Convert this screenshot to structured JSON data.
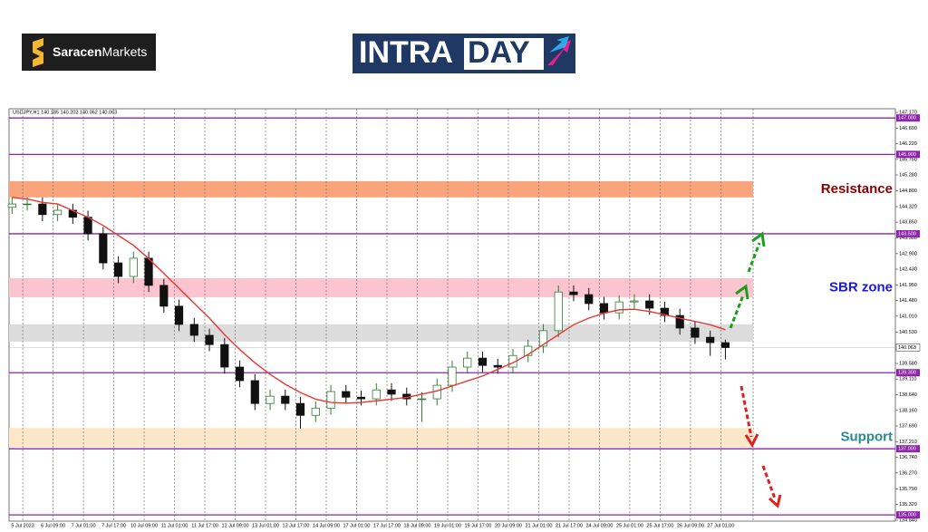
{
  "header": {
    "brand_bold": "Saracen",
    "brand_rest": "Markets",
    "banner_left": "INTRA",
    "banner_right": "DAY"
  },
  "chart_data": {
    "type": "candlestick",
    "symbol_info": "USDJPY,H1  140.185 140.202 140.062 140.063",
    "up_color": "#2e7d32",
    "down_color": "#111111",
    "open": [
      144.3,
      144.4,
      144.4,
      144.08,
      144.21,
      144.0,
      143.5,
      142.62,
      142.21,
      142.76,
      141.94,
      141.31,
      140.76,
      140.43,
      140.15,
      139.47,
      139.06,
      138.37,
      138.59,
      138.37,
      138.01,
      138.23,
      138.73,
      138.56,
      138.51,
      138.78,
      138.65,
      138.51,
      138.51,
      138.92,
      139.47,
      139.74,
      139.52,
      139.47,
      139.82,
      140.1,
      140.57,
      141.74,
      141.66,
      141.39,
      141.11,
      141.44,
      141.47,
      141.25,
      141.03,
      140.65,
      140.37,
      140.21
    ],
    "high": [
      144.6,
      144.6,
      144.6,
      144.41,
      144.41,
      144.2,
      143.7,
      142.82,
      142.96,
      142.96,
      142.14,
      141.51,
      140.96,
      140.63,
      140.35,
      139.67,
      139.26,
      138.79,
      138.79,
      138.57,
      138.43,
      138.93,
      138.93,
      138.76,
      138.98,
      138.98,
      138.85,
      138.71,
      139.12,
      139.67,
      139.94,
      139.94,
      139.72,
      140.02,
      140.3,
      140.77,
      141.94,
      141.94,
      141.86,
      141.59,
      141.64,
      141.67,
      141.67,
      141.45,
      141.23,
      140.85,
      140.57,
      140.3
    ],
    "low": [
      144.1,
      144.2,
      143.88,
      143.88,
      143.8,
      143.3,
      142.42,
      142.01,
      142.01,
      141.74,
      141.11,
      140.56,
      140.23,
      139.95,
      139.27,
      138.86,
      138.17,
      138.17,
      138.17,
      137.61,
      137.81,
      138.03,
      138.36,
      138.31,
      138.31,
      138.45,
      138.31,
      137.81,
      138.31,
      138.72,
      139.27,
      139.32,
      139.27,
      139.27,
      139.62,
      139.9,
      140.37,
      141.46,
      141.19,
      140.91,
      140.91,
      141.24,
      141.05,
      140.83,
      140.45,
      140.17,
      139.81,
      139.7
    ],
    "close": [
      144.4,
      144.4,
      144.08,
      144.21,
      144.0,
      143.5,
      142.62,
      142.21,
      142.76,
      141.94,
      141.31,
      140.76,
      140.43,
      140.15,
      139.47,
      139.06,
      138.37,
      138.59,
      138.37,
      138.01,
      138.23,
      138.73,
      138.56,
      138.51,
      138.78,
      138.65,
      138.51,
      138.51,
      138.92,
      139.47,
      139.74,
      139.52,
      139.47,
      139.82,
      140.1,
      140.57,
      141.74,
      141.66,
      141.39,
      141.11,
      141.44,
      141.47,
      141.25,
      141.03,
      140.65,
      140.37,
      140.21,
      140.06
    ],
    "moving_average": {
      "color": "#e53935",
      "values": [
        144.6,
        144.55,
        144.45,
        144.4,
        144.2,
        144.0,
        143.75,
        143.45,
        143.15,
        142.75,
        142.3,
        141.85,
        141.4,
        140.95,
        140.45,
        140.0,
        139.6,
        139.25,
        138.95,
        138.7,
        138.5,
        138.4,
        138.38,
        138.4,
        138.45,
        138.5,
        138.55,
        138.65,
        138.75,
        138.9,
        139.05,
        139.2,
        139.4,
        139.6,
        139.85,
        140.15,
        140.45,
        140.75,
        140.95,
        141.1,
        141.2,
        141.22,
        141.15,
        141.05,
        140.95,
        140.85,
        140.75,
        140.6
      ]
    },
    "xlim": [
      -0.2,
      58.2
    ],
    "xticks": [
      {
        "value": 0.7,
        "label": "5 Jul 2023"
      },
      {
        "value": 2.7,
        "label": "6 Jul 09:00"
      },
      {
        "value": 4.7,
        "label": "7 Jul 01:00"
      },
      {
        "value": 6.7,
        "label": "7 Jul 17:00"
      },
      {
        "value": 8.7,
        "label": "10 Jul 09:00"
      },
      {
        "value": 10.7,
        "label": "11 Jul 01:00"
      },
      {
        "value": 12.7,
        "label": "11 Jul 17:00"
      },
      {
        "value": 14.7,
        "label": "12 Jul 09:00"
      },
      {
        "value": 16.7,
        "label": "13 Jul 01:00"
      },
      {
        "value": 18.7,
        "label": "13 Jul 17:00"
      },
      {
        "value": 20.7,
        "label": "14 Jul 09:00"
      },
      {
        "value": 22.7,
        "label": "17 Jul 01:00"
      },
      {
        "value": 24.7,
        "label": "17 Jul 17:00"
      },
      {
        "value": 26.7,
        "label": "18 Jul 09:00"
      },
      {
        "value": 28.7,
        "label": "19 Jul 01:00"
      },
      {
        "value": 30.7,
        "label": "19 Jul 17:00"
      },
      {
        "value": 32.7,
        "label": "20 Jul 09:00"
      },
      {
        "value": 34.7,
        "label": "21 Jul 01:00"
      },
      {
        "value": 36.7,
        "label": "21 Jul 17:00"
      },
      {
        "value": 38.7,
        "label": "24 Jul 09:00"
      },
      {
        "value": 40.7,
        "label": "25 Jul 01:00"
      },
      {
        "value": 42.7,
        "label": "25 Jul 17:00"
      },
      {
        "value": 44.7,
        "label": "26 Jul 09:00"
      },
      {
        "value": 46.7,
        "label": "27 Jul 01:00"
      }
    ],
    "ylim": [
      134.84,
      147.17
    ],
    "yticks": [
      {
        "value": 147.17,
        "label": "147.170"
      },
      {
        "value": 146.69,
        "label": "146.690"
      },
      {
        "value": 146.22,
        "label": "146.220"
      },
      {
        "value": 145.75,
        "label": "145.750"
      },
      {
        "value": 145.28,
        "label": "145.280"
      },
      {
        "value": 144.8,
        "label": "144.800"
      },
      {
        "value": 144.32,
        "label": "144.320"
      },
      {
        "value": 143.85,
        "label": "143.850"
      },
      {
        "value": 143.38,
        "label": "143.380"
      },
      {
        "value": 142.9,
        "label": "142.900"
      },
      {
        "value": 142.43,
        "label": "142.430"
      },
      {
        "value": 141.95,
        "label": "141.950"
      },
      {
        "value": 141.48,
        "label": "141.480"
      },
      {
        "value": 141.01,
        "label": "141.010"
      },
      {
        "value": 140.53,
        "label": "140.530"
      },
      {
        "value": 139.58,
        "label": "139.580"
      },
      {
        "value": 139.11,
        "label": "139.110"
      },
      {
        "value": 138.64,
        "label": "138.640"
      },
      {
        "value": 138.16,
        "label": "138.160"
      },
      {
        "value": 137.69,
        "label": "137.690"
      },
      {
        "value": 137.21,
        "label": "137.210"
      },
      {
        "value": 136.74,
        "label": "136.740"
      },
      {
        "value": 136.27,
        "label": "136.270"
      },
      {
        "value": 135.79,
        "label": "135.790"
      },
      {
        "value": 135.32,
        "label": "135.320"
      },
      {
        "value": 134.84,
        "label": "134.840"
      }
    ],
    "levels": [
      {
        "value": 147.0,
        "label": "147.000"
      },
      {
        "value": 145.9,
        "label": "145.900"
      },
      {
        "value": 143.5,
        "label": "143.500"
      },
      {
        "value": 139.3,
        "label": "139.300"
      },
      {
        "value": 137.0,
        "label": "137.000"
      },
      {
        "value": 135.0,
        "label": "135.000"
      }
    ],
    "level_color": "#8e24aa",
    "current_price": {
      "value": 140.063,
      "label": "140.063"
    },
    "zones": [
      {
        "name": "Resistance",
        "low": 144.6,
        "high": 145.09,
        "color": "#f9a47b",
        "label_color": "#8b0000"
      },
      {
        "name": "SBR zone",
        "low": 141.58,
        "high": 142.16,
        "color": "#fbc4cf",
        "label_color": "#1a1adb"
      },
      {
        "low": 140.24,
        "high": 140.76,
        "color": "#dcdcdc"
      },
      {
        "name": "Support",
        "low": 137.05,
        "high": 137.63,
        "color": "#fce7c8",
        "label_color": "#2a8a8a"
      }
    ]
  }
}
